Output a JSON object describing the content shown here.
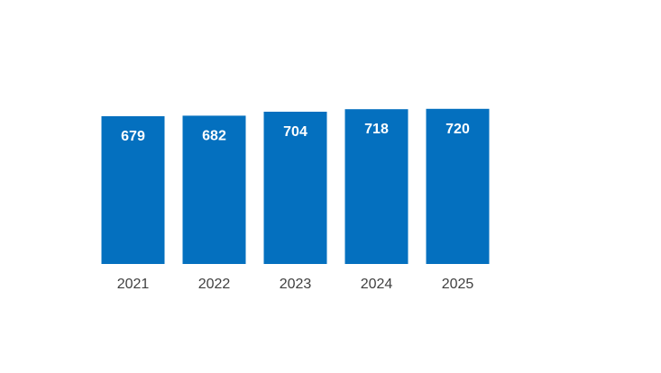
{
  "colors": {
    "bar": "#0470BF",
    "value_label": "#ffffff",
    "category_label": "#404040",
    "background": "#ffffff"
  },
  "chart_data": {
    "type": "bar",
    "categories": [
      "2021",
      "2022",
      "2023",
      "2024",
      "2025"
    ],
    "values": [
      679,
      682,
      704,
      718,
      720
    ],
    "data_labels": [
      "679",
      "682",
      "704",
      "718",
      "720"
    ],
    "title": "",
    "xlabel": "",
    "ylabel": "",
    "grid": false,
    "legend": "none"
  }
}
